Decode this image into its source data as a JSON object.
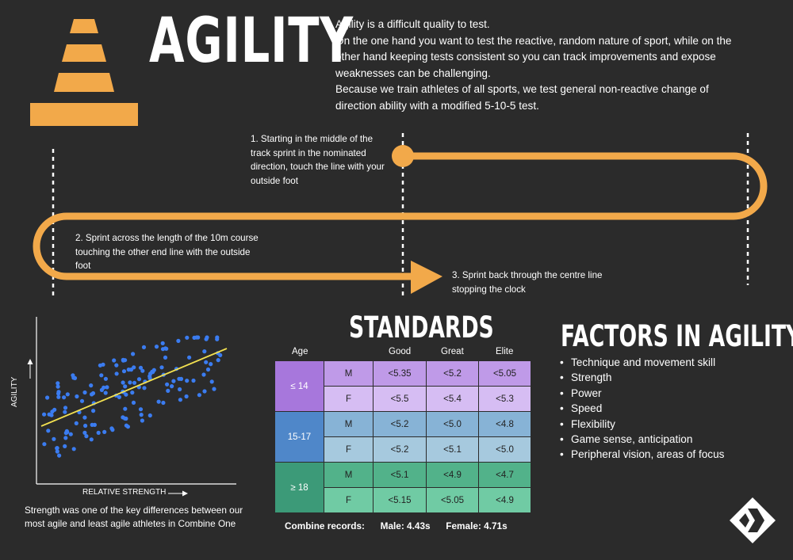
{
  "title": "AGILITY",
  "intro": [
    "Agility is a difficult quality to test.",
    "On the one hand you want to test the reactive, random nature of sport, while on the other hand keeping tests consistent so you can track improvements and expose weaknesses can be challenging.",
    "Because we train athletes of all sports, we test general non-reactive change of direction ability with a modified 5-10-5 test."
  ],
  "steps": [
    "1. Starting in the middle of the track sprint in the nominated direction, touch the line with your outside foot",
    "2. Sprint across the length of the 10m course touching the other end line with the outside foot",
    "3. Sprint back through the centre line stopping the clock"
  ],
  "scatter": {
    "ylabel": "AGILITY",
    "xlabel": "RELATIVE STRENGTH",
    "caption": "Strength was one of the key differences between our most agile and least agile athletes in Combine One"
  },
  "standards": {
    "title": "STANDARDS",
    "headers": [
      "Age",
      "Good",
      "Great",
      "Elite"
    ],
    "groups": [
      {
        "age": "≤ 14",
        "rows": [
          {
            "sex": "M",
            "good": "<5.35",
            "great": "<5.2",
            "elite": "<5.05"
          },
          {
            "sex": "F",
            "good": "<5.5",
            "great": "<5.4",
            "elite": "<5.3"
          }
        ]
      },
      {
        "age": "15-17",
        "rows": [
          {
            "sex": "M",
            "good": "<5.2",
            "great": "<5.0",
            "elite": "<4.8"
          },
          {
            "sex": "F",
            "good": "<5.2",
            "great": "<5.1",
            "elite": "<5.0"
          }
        ]
      },
      {
        "age": "≥ 18",
        "rows": [
          {
            "sex": "M",
            "good": "<5.1",
            "great": "<4.9",
            "elite": "<4.7"
          },
          {
            "sex": "F",
            "good": "<5.15",
            "great": "<5.05",
            "elite": "<4.9"
          }
        ]
      }
    ],
    "records_label": "Combine records:",
    "records_male": "Male: 4.43s",
    "records_female": "Female: 4.71s"
  },
  "factors": {
    "title": "FACTORS IN AGILITY",
    "items": [
      "Technique and movement skill",
      "Strength",
      "Power",
      "Speed",
      "Flexibility",
      "Game sense, anticipation",
      "Peripheral vision, areas of focus"
    ]
  },
  "colors": {
    "background": "#2b2b2b",
    "accent_orange": "#f2a94a",
    "scatter_points": "#3b7cf0",
    "trend_line": "#f2e050",
    "group1_age": "#a777dc",
    "group1_m": "#bf9ae8",
    "group1_f": "#d6bdf3",
    "group2_age": "#4f87c9",
    "group2_m": "#87b3d6",
    "group2_f": "#a6c9de",
    "group3_age": "#3c9a78",
    "group3_m": "#52b28a",
    "group3_f": "#70cba4"
  },
  "icons": [
    "traffic-cone-icon",
    "brand-logo-icon",
    "arrow-up-icon",
    "arrow-right-icon"
  ]
}
